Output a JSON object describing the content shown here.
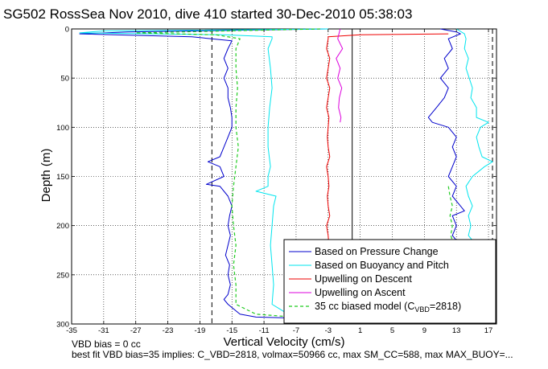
{
  "chart_data": {
    "type": "line",
    "title": "SG502 RossSea Nov 2010, dive 410 started 30-Dec-2010 05:38:03",
    "xlabel": "Vertical Velocity (cm/s)",
    "ylabel": "Depth (m)",
    "xlim": [
      -35,
      18
    ],
    "ylim": [
      0,
      300
    ],
    "y_reversed": true,
    "grid": true,
    "xticks": [
      -35,
      -31,
      -27,
      -23,
      -19,
      -15,
      -11,
      -7,
      -3,
      1,
      5,
      9,
      13,
      17
    ],
    "yticks": [
      0,
      50,
      100,
      150,
      200,
      250,
      300
    ],
    "legend_position": "bottom-right",
    "colors": {
      "pressure": "#0000cc",
      "buoyancy": "#00e5ee",
      "upwelling_descent": "#ee0000",
      "upwelling_ascent": "#dd00dd",
      "model": "#22cc22",
      "reference": "#000000"
    },
    "legend": {
      "pressure": "Based on Pressure Change",
      "buoyancy": "Based on Buoyancy and Pitch",
      "upwelling_descent": "Upwelling on Descent",
      "upwelling_ascent": "Upwelling on Ascent",
      "model_prefix": "35 cc biased model (C",
      "model_sub": "VBD",
      "model_suffix": "=2818)"
    },
    "reference_lines": [
      {
        "x": -17.5,
        "style": "dashed",
        "color": "#000000"
      },
      {
        "x": 0,
        "style": "solid",
        "color": "#000000"
      },
      {
        "x": 17.5,
        "style": "dashed",
        "color": "#000000"
      }
    ],
    "series": [
      {
        "key": "pressure",
        "name": "Based on Pressure Change",
        "segments": [
          {
            "y": [
              0,
              3,
              5,
              8,
              12,
              20,
              30,
              40,
              50,
              60,
              70,
              80,
              90,
              100,
              110,
              120,
              130,
              135,
              140,
              150,
              158,
              160,
              170,
              180,
              190,
              200,
              210,
              220,
              230,
              240,
              250,
              260,
              270,
              275,
              280,
              290,
              293,
              295
            ],
            "x": [
              -3,
              -28,
              -34,
              -20,
              -15,
              -15.5,
              -16,
              -15.5,
              -16,
              -15.5,
              -15.5,
              -15.2,
              -15,
              -15,
              -15.5,
              -16,
              -16.5,
              -18,
              -16.5,
              -16,
              -18.2,
              -16.5,
              -15.5,
              -15,
              -15.3,
              -15.5,
              -15.2,
              -15.5,
              -15.8,
              -15.3,
              -15.5,
              -15.2,
              -15.5,
              -16,
              -15.5,
              -14,
              -12,
              -3
            ]
          },
          {
            "y": [
              0,
              3,
              5,
              10,
              20,
              30,
              40,
              50,
              60,
              70,
              80,
              90,
              95,
              100,
              110,
              120,
              130,
              140,
              150,
              160,
              170,
              180,
              185,
              190,
              200,
              210,
              215
            ],
            "x": [
              11,
              13,
              13.5,
              12,
              12.5,
              11.5,
              12,
              11,
              12,
              11.5,
              10.5,
              9.5,
              10,
              12,
              13,
              12.5,
              13,
              12.5,
              12,
              13,
              12.5,
              13.5,
              14,
              12.5,
              13,
              12.5,
              13
            ]
          }
        ]
      },
      {
        "key": "buoyancy",
        "name": "Based on Buoyancy and Pitch",
        "segments": [
          {
            "y": [
              0,
              2,
              4,
              6,
              8,
              10,
              20,
              40,
              60,
              80,
              100,
              120,
              140,
              150,
              160,
              165,
              170,
              180,
              200,
              220,
              240,
              260,
              280,
              285,
              290,
              293,
              295
            ],
            "x": [
              -3,
              -31,
              -34,
              -16,
              -10,
              -10,
              -10.5,
              -10.2,
              -10,
              -10.3,
              -10.5,
              -10.5,
              -10.2,
              -10.5,
              -10.5,
              -12,
              -9.5,
              -9.8,
              -10,
              -10.2,
              -10,
              -9.8,
              -10,
              -9,
              -8,
              -5,
              -3
            ]
          },
          {
            "y": [
              0,
              5,
              10,
              20,
              30,
              40,
              50,
              60,
              70,
              80,
              90,
              95,
              100,
              110,
              120,
              130,
              135,
              140,
              150,
              160,
              170,
              180,
              190,
              200,
              210,
              215
            ],
            "x": [
              13,
              14,
              14.2,
              14,
              14.5,
              14.2,
              14.6,
              15,
              14.8,
              15.5,
              15.5,
              17,
              16,
              15.5,
              15.8,
              16.2,
              17.5,
              16.5,
              15,
              14.2,
              14.5,
              15,
              14.5,
              14.8,
              14.5,
              15
            ]
          }
        ]
      },
      {
        "key": "upwelling_descent",
        "name": "Upwelling on Descent",
        "segments": [
          {
            "y": [
              5,
              6,
              8,
              10,
              20,
              30,
              40,
              50,
              60,
              70,
              80,
              90,
              100,
              110,
              120,
              130,
              140,
              150,
              160,
              170,
              180,
              190,
              200,
              210,
              220,
              230,
              240,
              250,
              260,
              270,
              280,
              290,
              295
            ],
            "x": [
              12,
              1,
              -3,
              -3,
              -3.2,
              -2.8,
              -3,
              -3.2,
              -2.8,
              -3,
              -3.2,
              -2.9,
              -3,
              -3.1,
              -3,
              -2.8,
              -3.2,
              -3,
              -2.9,
              -3.1,
              -3,
              -2.8,
              -3.2,
              -3,
              -2.9,
              -3.1,
              -3,
              -2.8,
              -3,
              -3.1,
              -2.9,
              -3,
              -3
            ]
          }
        ]
      },
      {
        "key": "upwelling_ascent",
        "name": "Upwelling on Ascent",
        "segments": [
          {
            "y": [
              0,
              10,
              20,
              30,
              40,
              50,
              60,
              70,
              80,
              90,
              95
            ],
            "x": [
              -1.5,
              -1.8,
              -1.2,
              -2,
              -1.5,
              -1.8,
              -1.3,
              -1.6,
              -1.7,
              -1.4,
              -1.5
            ]
          }
        ]
      },
      {
        "key": "model",
        "name": "35 cc biased model (CVBD=2818)",
        "dashed": true,
        "segments": [
          {
            "y": [
              0,
              4,
              6,
              10,
              20,
              40,
              60,
              80,
              100,
              120,
              140,
              160,
              180,
              200,
              220,
              240,
              260,
              280,
              290,
              295
            ],
            "x": [
              -4,
              -27,
              -17,
              -14,
              -14.5,
              -14.5,
              -14.3,
              -14.5,
              -14.5,
              -14.2,
              -14.5,
              -14.8,
              -15,
              -14.8,
              -14.5,
              -14.8,
              -14.5,
              -14.5,
              -12,
              -4
            ]
          },
          {
            "y": [
              160,
              170,
              180,
              190,
              200,
              210,
              215
            ],
            "x": [
              12,
              12.2,
              12.5,
              12.2,
              12.5,
              12.3,
              12.5
            ]
          }
        ]
      }
    ]
  },
  "notes": {
    "line1": "VBD bias = 0 cc",
    "line2": "best fit VBD bias=35 implies: C_VBD=2818, volmax=50966 cc, max SM_CC=588, max MAX_BUOY=..."
  }
}
